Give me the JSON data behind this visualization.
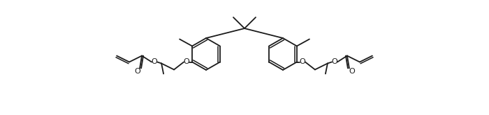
{
  "bg_color": "#ffffff",
  "line_color": "#1a1a1a",
  "lw": 1.3,
  "figsize": [
    7.0,
    1.66
  ],
  "dpi": 100,
  "xlim": [
    0,
    700
  ],
  "ylim": [
    0,
    166
  ]
}
